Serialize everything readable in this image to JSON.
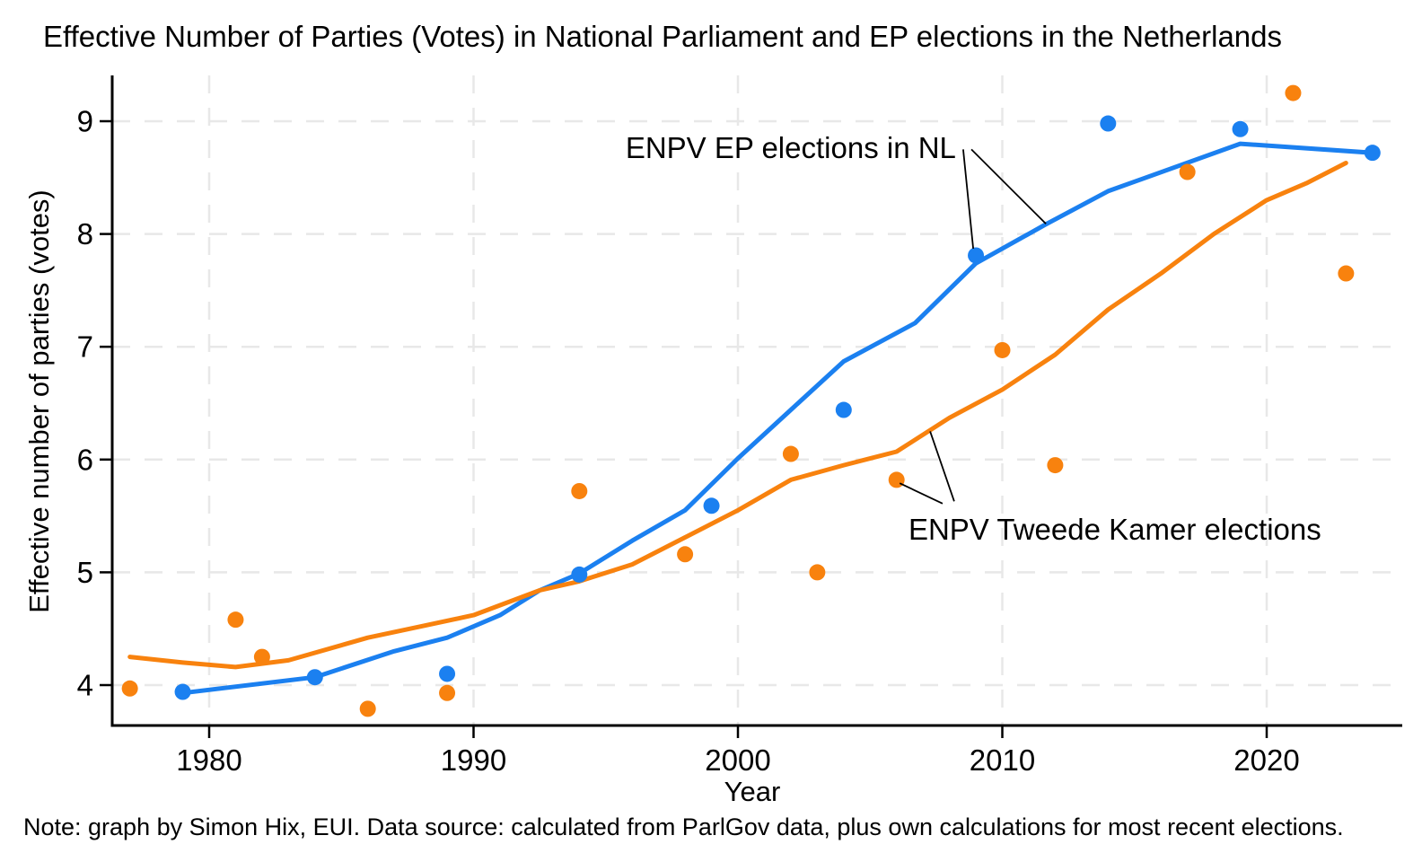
{
  "note": "Note: graph by Simon Hix, EUI. Data source: calculated from ParlGov data, plus own calculations for most recent elections.",
  "chart_data": {
    "type": "scatter",
    "title": "Effective Number of Parties (Votes) in National Parliament and EP elections in the Netherlands",
    "xlabel": "Year",
    "ylabel": "Effective number of parties (votes)",
    "x_ticks": [
      1980,
      1990,
      2000,
      2010,
      2020
    ],
    "y_ticks": [
      4,
      5,
      6,
      7,
      8,
      9
    ],
    "xlim": [
      1976.3,
      2025.1
    ],
    "ylim": [
      3.64,
      9.42
    ],
    "grid": "dashed-both",
    "legend_position": "none (labels annotated on plot)",
    "colors": {
      "ep_blue": "#1b80f0",
      "tk_orange": "#f8820e",
      "gridline": "#e8e8e8",
      "axis": "#000000",
      "background": "#ffffff"
    },
    "series": [
      {
        "id": "ep",
        "name": "ENPV EP elections in NL",
        "color": "#1b80f0",
        "marker": "circle",
        "points": [
          [
            1979,
            3.94
          ],
          [
            1984,
            4.07
          ],
          [
            1989,
            4.1
          ],
          [
            1994,
            4.98
          ],
          [
            1999,
            5.59
          ],
          [
            2004,
            6.44
          ],
          [
            2009,
            7.81
          ],
          [
            2014,
            8.98
          ],
          [
            2019,
            8.93
          ],
          [
            2024,
            8.72
          ]
        ],
        "trend": [
          [
            1979,
            3.93
          ],
          [
            1984,
            4.07
          ],
          [
            1987,
            4.3
          ],
          [
            1989,
            4.42
          ],
          [
            1991,
            4.62
          ],
          [
            1992.5,
            4.84
          ],
          [
            1994,
            4.99
          ],
          [
            1996,
            5.28
          ],
          [
            1998,
            5.55
          ],
          [
            2000,
            6.01
          ],
          [
            2002,
            6.44
          ],
          [
            2004,
            6.87
          ],
          [
            2006.7,
            7.21
          ],
          [
            2009,
            7.74
          ],
          [
            2011.6,
            8.08
          ],
          [
            2014,
            8.38
          ],
          [
            2019,
            8.8
          ],
          [
            2024,
            8.72
          ]
        ]
      },
      {
        "id": "tk",
        "name": "ENPV Tweede Kamer elections",
        "color": "#f8820e",
        "marker": "circle",
        "points": [
          [
            1977,
            3.97
          ],
          [
            1981,
            4.58
          ],
          [
            1982,
            4.25
          ],
          [
            1986,
            3.79
          ],
          [
            1989,
            3.93
          ],
          [
            1994,
            5.72
          ],
          [
            1998,
            5.16
          ],
          [
            2002,
            6.05
          ],
          [
            2003,
            5.0
          ],
          [
            2006,
            5.82
          ],
          [
            2010,
            6.97
          ],
          [
            2012,
            5.95
          ],
          [
            2017,
            8.55
          ],
          [
            2021,
            9.25
          ],
          [
            2023,
            7.65
          ]
        ],
        "trend": [
          [
            1977,
            4.25
          ],
          [
            1979,
            4.2
          ],
          [
            1981,
            4.16
          ],
          [
            1983,
            4.22
          ],
          [
            1986,
            4.42
          ],
          [
            1988,
            4.52
          ],
          [
            1990,
            4.62
          ],
          [
            1992.5,
            4.84
          ],
          [
            1994,
            4.92
          ],
          [
            1996,
            5.07
          ],
          [
            1998,
            5.31
          ],
          [
            2000,
            5.55
          ],
          [
            2002,
            5.82
          ],
          [
            2004,
            5.95
          ],
          [
            2006,
            6.07
          ],
          [
            2008,
            6.37
          ],
          [
            2010,
            6.62
          ],
          [
            2012,
            6.93
          ],
          [
            2014,
            7.33
          ],
          [
            2016,
            7.65
          ],
          [
            2018,
            8.0
          ],
          [
            2020,
            8.3
          ],
          [
            2021.5,
            8.45
          ],
          [
            2023,
            8.63
          ]
        ]
      }
    ],
    "annotations": [
      {
        "id": "ep",
        "label": "ENPV EP elections in NL",
        "text_pos": [
          1995.75,
          8.91
        ],
        "pointer_lines": [
          [
            2008.52,
            8.75,
            2008.9,
            7.87
          ],
          [
            2008.83,
            8.75,
            2011.65,
            8.09
          ]
        ]
      },
      {
        "id": "tk",
        "label": "ENPV Tweede Kamer elections",
        "text_pos": [
          2006.45,
          5.53
        ],
        "pointer_lines": [
          [
            2006.12,
            5.79,
            2007.74,
            5.61
          ],
          [
            2007.27,
            6.25,
            2008.18,
            5.63
          ]
        ]
      }
    ]
  }
}
